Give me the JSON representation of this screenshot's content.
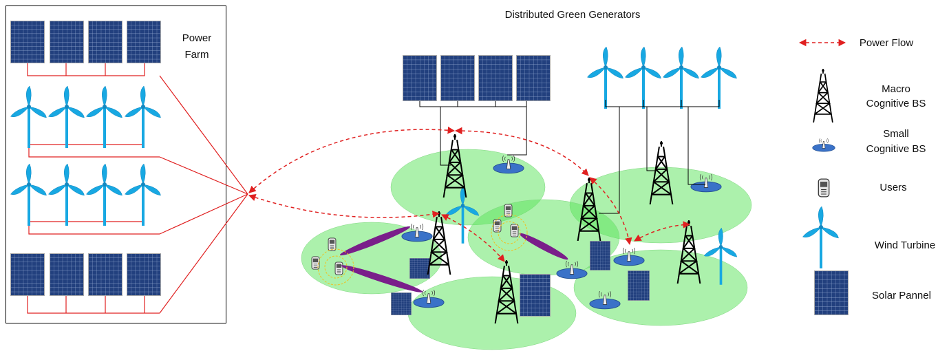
{
  "power_farm": {
    "label": [
      "Power",
      "Farm"
    ]
  },
  "title": "Distributed Green Generators",
  "legend": [
    {
      "label": [
        "Power Flow"
      ]
    },
    {
      "label": [
        "Macro",
        "Cognitive BS"
      ]
    },
    {
      "label": [
        "Small",
        "Cognitive BS"
      ]
    },
    {
      "label": [
        "Users"
      ]
    },
    {
      "label": [
        "Wind Turbine"
      ]
    },
    {
      "label": [
        "Solar Pannel"
      ]
    }
  ]
}
